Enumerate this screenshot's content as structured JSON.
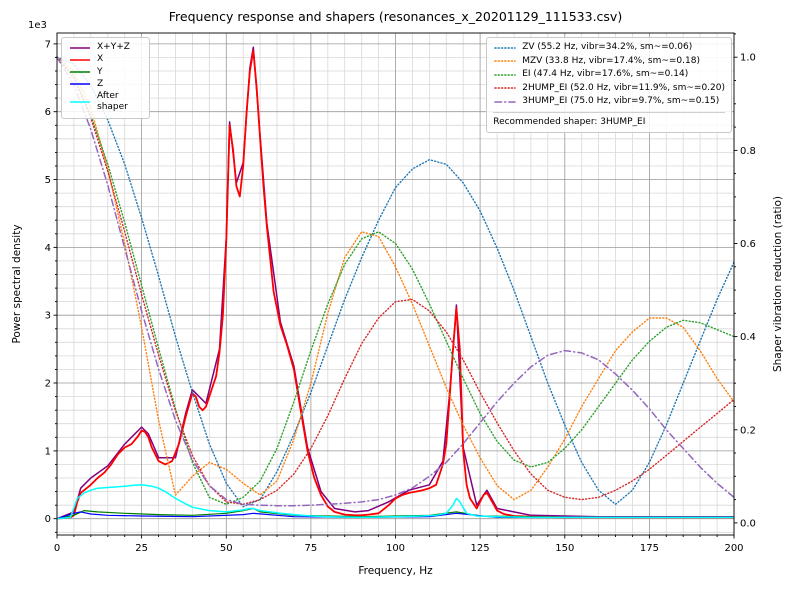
{
  "chart_data": {
    "type": "line",
    "title": "Frequency response and shapers (resonances_x_20201129_111533.csv)",
    "xlabel": "Frequency, Hz",
    "ylabel": "Power spectral density",
    "ylabel2": "Shaper vibration reduction (ratio)",
    "y_offset_label": "1e3",
    "psd_scale": "1e3",
    "xlim": [
      0,
      200
    ],
    "ylim_left": [
      -0.24,
      7.16
    ],
    "ylim_right": [
      -0.026,
      1.052
    ],
    "xticks": [
      0,
      25,
      50,
      75,
      100,
      125,
      150,
      175,
      200
    ],
    "xtick_labels": [
      "0",
      "25",
      "50",
      "75",
      "100",
      "125",
      "150",
      "175",
      "200"
    ],
    "yticks_left": [
      0,
      1,
      2,
      3,
      4,
      5,
      6,
      7
    ],
    "ytick_left_labels": [
      "0",
      "1",
      "2",
      "3",
      "4",
      "5",
      "6",
      "7"
    ],
    "yticks_right": [
      0,
      0.2,
      0.4,
      0.6,
      0.8,
      1.0
    ],
    "ytick_right_labels": [
      "0.0",
      "0.2",
      "0.4",
      "0.6",
      "0.8",
      "1.0"
    ],
    "grid": {
      "x_minor": 5,
      "x_major": 25,
      "y_minor_left": 0.2,
      "y_major_left": 1,
      "right_tick_minor": 0.05
    },
    "legend_right_footer": "Recommended shaper: 3HUMP_EI",
    "recommended_shaper": "3HUMP_EI",
    "shaper_x": [
      0,
      5,
      10,
      15,
      20,
      25,
      30,
      35,
      40,
      45,
      50,
      55,
      60,
      65,
      70,
      75,
      80,
      85,
      90,
      95,
      100,
      105,
      110,
      115,
      120,
      125,
      130,
      135,
      140,
      145,
      150,
      155,
      160,
      165,
      170,
      175,
      180,
      185,
      190,
      195,
      200
    ],
    "series": [
      {
        "id": "psd-xyz",
        "name": "X+Y+Z",
        "label": "X+Y+Z",
        "axis": "left",
        "color": "#800080",
        "style": "solid",
        "width": 1.5,
        "x": [
          0,
          5,
          7,
          10,
          15,
          20,
          25,
          27,
          30,
          35,
          38,
          40,
          44,
          48,
          50,
          51,
          53,
          55,
          57,
          58,
          60,
          62,
          66,
          70,
          74,
          78,
          82,
          88,
          92,
          98,
          104,
          110,
          114,
          116,
          118,
          120,
          124,
          127,
          130,
          140,
          160,
          200
        ],
        "y": [
          0,
          0.1,
          0.45,
          0.6,
          0.78,
          1.1,
          1.35,
          1.25,
          0.9,
          0.9,
          1.55,
          1.9,
          1.7,
          2.5,
          4.15,
          5.85,
          4.95,
          5.25,
          6.65,
          6.95,
          5.65,
          4.35,
          2.9,
          2.25,
          1.05,
          0.4,
          0.15,
          0.1,
          0.12,
          0.25,
          0.42,
          0.5,
          0.85,
          1.85,
          3.15,
          1.05,
          0.2,
          0.42,
          0.15,
          0.05,
          0.03,
          0.03
        ]
      },
      {
        "id": "psd-x",
        "name": "X",
        "label": "X",
        "axis": "left",
        "color": "#ff0000",
        "style": "solid",
        "width": 1.8,
        "x": [
          0,
          2,
          4,
          5,
          6,
          7,
          8,
          10,
          12,
          14,
          16,
          18,
          20,
          22,
          24,
          25,
          26,
          27,
          28,
          30,
          32,
          34,
          36,
          38,
          40,
          41,
          42,
          43,
          44,
          46,
          47,
          48,
          49,
          50,
          51,
          52,
          53,
          54,
          55,
          56,
          57,
          58,
          59,
          60,
          61,
          62,
          64,
          66,
          68,
          70,
          72,
          74,
          76,
          78,
          80,
          82,
          85,
          88,
          90,
          92,
          95,
          98,
          100,
          102,
          104,
          106,
          108,
          110,
          112,
          114,
          115,
          116,
          117,
          118,
          119,
          120,
          121,
          122,
          124,
          126,
          127,
          128,
          130,
          132,
          135,
          140,
          150,
          160,
          180,
          200
        ],
        "y": [
          0,
          0.01,
          0.02,
          0.05,
          0.25,
          0.38,
          0.42,
          0.5,
          0.6,
          0.68,
          0.8,
          0.95,
          1.05,
          1.1,
          1.22,
          1.3,
          1.28,
          1.2,
          1.05,
          0.85,
          0.8,
          0.85,
          1.1,
          1.5,
          1.85,
          1.8,
          1.65,
          1.6,
          1.65,
          1.95,
          2.1,
          2.45,
          3.0,
          4.1,
          5.8,
          5.45,
          4.9,
          4.75,
          5.2,
          6.0,
          6.6,
          6.9,
          6.35,
          5.6,
          4.9,
          4.3,
          3.35,
          2.85,
          2.55,
          2.2,
          1.6,
          1.0,
          0.6,
          0.35,
          0.18,
          0.1,
          0.06,
          0.05,
          0.05,
          0.06,
          0.08,
          0.2,
          0.3,
          0.35,
          0.38,
          0.4,
          0.42,
          0.45,
          0.5,
          0.8,
          1.1,
          1.8,
          2.5,
          3.1,
          2.5,
          1.0,
          0.5,
          0.3,
          0.15,
          0.35,
          0.38,
          0.3,
          0.12,
          0.07,
          0.04,
          0.03,
          0.02,
          0.02,
          0.02,
          0.02
        ]
      },
      {
        "id": "psd-y",
        "name": "Y",
        "label": "Y",
        "axis": "left",
        "color": "#008000",
        "style": "solid",
        "width": 1.2,
        "x": [
          0,
          5,
          8,
          12,
          20,
          30,
          40,
          50,
          55,
          58,
          60,
          70,
          80,
          90,
          100,
          110,
          118,
          125,
          140,
          160,
          200
        ],
        "y": [
          0,
          0.05,
          0.12,
          0.1,
          0.08,
          0.06,
          0.05,
          0.08,
          0.12,
          0.15,
          0.1,
          0.05,
          0.04,
          0.03,
          0.04,
          0.05,
          0.1,
          0.04,
          0.03,
          0.02,
          0.02
        ]
      },
      {
        "id": "psd-z",
        "name": "Z",
        "label": "Z",
        "axis": "left",
        "color": "#0000ff",
        "style": "solid",
        "width": 1.2,
        "x": [
          0,
          5,
          7,
          10,
          15,
          25,
          40,
          55,
          58,
          70,
          90,
          110,
          118,
          130,
          160,
          200
        ],
        "y": [
          0,
          0.08,
          0.1,
          0.07,
          0.05,
          0.04,
          0.03,
          0.06,
          0.08,
          0.03,
          0.02,
          0.03,
          0.08,
          0.02,
          0.02,
          0.02
        ]
      },
      {
        "id": "psd-after-shaper",
        "name": "After shaper",
        "label": "After shaper",
        "axis": "left",
        "color": "#00ffff",
        "style": "solid",
        "width": 1.5,
        "x": [
          0,
          4,
          6,
          8,
          10,
          12,
          15,
          18,
          20,
          22,
          25,
          28,
          30,
          32,
          35,
          38,
          40,
          45,
          50,
          53,
          55,
          57,
          58,
          60,
          63,
          66,
          70,
          75,
          80,
          90,
          100,
          108,
          112,
          115,
          117,
          118,
          119,
          121,
          124,
          130,
          140,
          160,
          200
        ],
        "y": [
          0,
          0.02,
          0.3,
          0.38,
          0.42,
          0.45,
          0.46,
          0.47,
          0.48,
          0.49,
          0.5,
          0.48,
          0.45,
          0.4,
          0.3,
          0.22,
          0.17,
          0.12,
          0.1,
          0.12,
          0.13,
          0.15,
          0.15,
          0.12,
          0.1,
          0.08,
          0.06,
          0.04,
          0.03,
          0.02,
          0.03,
          0.04,
          0.05,
          0.08,
          0.2,
          0.3,
          0.25,
          0.08,
          0.04,
          0.03,
          0.02,
          0.02,
          0.02
        ]
      },
      {
        "id": "shaper-zv",
        "name": "ZV",
        "label": "ZV (55.2 Hz, vibr=34.2%, sm~=0.06)",
        "axis": "right",
        "color": "#1f77b4",
        "style": "dotted",
        "width": 1.4,
        "x_ref": "shaper_x",
        "y": [
          1.0,
          0.985,
          0.94,
          0.865,
          0.77,
          0.655,
          0.53,
          0.4,
          0.28,
          0.17,
          0.085,
          0.035,
          0.05,
          0.11,
          0.19,
          0.28,
          0.38,
          0.48,
          0.57,
          0.65,
          0.72,
          0.76,
          0.78,
          0.77,
          0.73,
          0.67,
          0.59,
          0.5,
          0.4,
          0.3,
          0.21,
          0.13,
          0.07,
          0.04,
          0.07,
          0.13,
          0.21,
          0.3,
          0.39,
          0.48,
          0.56
        ]
      },
      {
        "id": "shaper-mzv",
        "name": "MZV",
        "label": "MZV (33.8 Hz, vibr=17.4%, sm~=0.18)",
        "axis": "right",
        "color": "#ff7f0e",
        "style": "dotted",
        "width": 1.4,
        "x_ref": "shaper_x",
        "y": [
          1.0,
          0.97,
          0.89,
          0.76,
          0.6,
          0.42,
          0.22,
          0.06,
          0.1,
          0.13,
          0.115,
          0.085,
          0.06,
          0.09,
          0.18,
          0.3,
          0.45,
          0.57,
          0.625,
          0.615,
          0.55,
          0.47,
          0.38,
          0.29,
          0.21,
          0.14,
          0.08,
          0.05,
          0.07,
          0.12,
          0.18,
          0.25,
          0.31,
          0.37,
          0.41,
          0.44,
          0.44,
          0.42,
          0.37,
          0.31,
          0.26
        ]
      },
      {
        "id": "shaper-ei",
        "name": "EI",
        "label": "EI (47.4 Hz, vibr=17.6%, sm~=0.14)",
        "axis": "right",
        "color": "#2ca02c",
        "style": "dotted",
        "width": 1.4,
        "x_ref": "shaper_x",
        "y": [
          1.0,
          0.96,
          0.875,
          0.77,
          0.645,
          0.51,
          0.375,
          0.245,
          0.13,
          0.055,
          0.04,
          0.055,
          0.09,
          0.16,
          0.26,
          0.37,
          0.47,
          0.555,
          0.61,
          0.625,
          0.6,
          0.545,
          0.47,
          0.39,
          0.31,
          0.235,
          0.175,
          0.135,
          0.12,
          0.13,
          0.16,
          0.2,
          0.25,
          0.3,
          0.35,
          0.39,
          0.42,
          0.435,
          0.43,
          0.415,
          0.4
        ]
      },
      {
        "id": "shaper-2hump-ei",
        "name": "2HUMP_EI",
        "label": "2HUMP_EI (52.0 Hz, vibr=11.9%, sm~=0.20)",
        "axis": "right",
        "color": "#d62728",
        "style": "dotted",
        "width": 1.4,
        "x_ref": "shaper_x",
        "y": [
          1.0,
          0.955,
          0.87,
          0.755,
          0.625,
          0.49,
          0.36,
          0.24,
          0.145,
          0.08,
          0.045,
          0.04,
          0.05,
          0.07,
          0.105,
          0.16,
          0.23,
          0.31,
          0.385,
          0.44,
          0.475,
          0.48,
          0.455,
          0.41,
          0.35,
          0.28,
          0.215,
          0.155,
          0.105,
          0.07,
          0.055,
          0.05,
          0.055,
          0.07,
          0.09,
          0.115,
          0.145,
          0.175,
          0.205,
          0.235,
          0.265
        ]
      },
      {
        "id": "shaper-3hump-ei",
        "name": "3HUMP_EI",
        "label": "3HUMP_EI (75.0 Hz, vibr=9.7%, sm~=0.15)",
        "axis": "right",
        "color": "#9467bd",
        "style": "dashdot",
        "width": 1.5,
        "x_ref": "shaper_x",
        "y": [
          1.0,
          0.94,
          0.845,
          0.725,
          0.59,
          0.455,
          0.33,
          0.22,
          0.135,
          0.08,
          0.05,
          0.04,
          0.038,
          0.037,
          0.037,
          0.038,
          0.04,
          0.042,
          0.045,
          0.05,
          0.06,
          0.075,
          0.1,
          0.13,
          0.17,
          0.215,
          0.26,
          0.3,
          0.335,
          0.36,
          0.37,
          0.365,
          0.35,
          0.32,
          0.285,
          0.245,
          0.2,
          0.16,
          0.12,
          0.085,
          0.055
        ]
      }
    ]
  }
}
